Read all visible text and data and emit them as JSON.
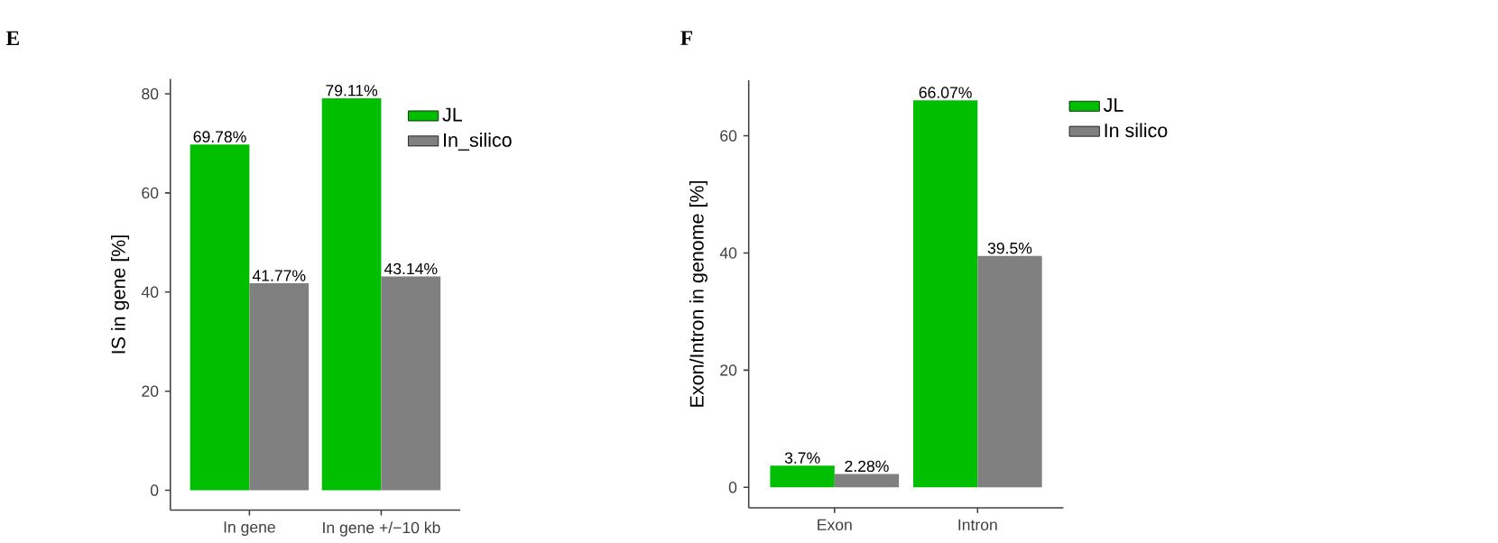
{
  "chart_data": [
    {
      "type": "bar",
      "title": "E",
      "ylabel": "IS in gene [%]",
      "categories": [
        "In gene",
        "In gene +/−10 kb"
      ],
      "series": [
        {
          "name": "JL",
          "color": "#00bf00",
          "values": [
            69.78,
            79.11
          ],
          "value_labels": [
            "69.78%",
            "79.11%"
          ]
        },
        {
          "name": "In_silico",
          "color": "#808080",
          "values": [
            41.77,
            43.14
          ],
          "value_labels": [
            "41.77%",
            "43.14%"
          ]
        }
      ],
      "ylim": [
        -4,
        83
      ],
      "yticks": [
        0,
        20,
        40,
        60,
        80
      ],
      "legend": "top right"
    },
    {
      "type": "bar",
      "title": "F",
      "ylabel": "Exon/Intron in genome [%]",
      "categories": [
        "Exon",
        "Intron"
      ],
      "series": [
        {
          "name": "JL",
          "color": "#00bf00",
          "values": [
            3.7,
            66.07
          ],
          "value_labels": [
            "3.7%",
            "66.07%"
          ]
        },
        {
          "name": "In silico",
          "color": "#808080",
          "values": [
            2.28,
            39.5
          ],
          "value_labels": [
            "2.28%",
            "39.5%"
          ]
        }
      ],
      "ylim": [
        -3.5,
        69.5
      ],
      "yticks": [
        0,
        20,
        40,
        60
      ],
      "legend": "right"
    }
  ]
}
